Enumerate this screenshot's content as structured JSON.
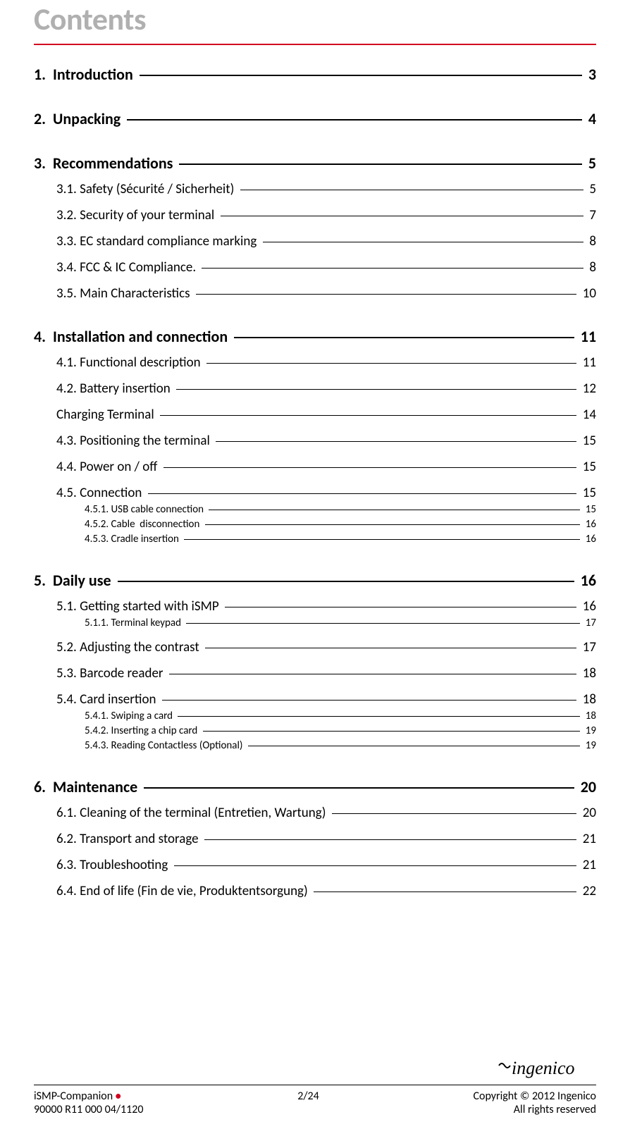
{
  "title": "Contents",
  "colors": {
    "title": "#b0b0b0",
    "rule": "#d00020",
    "text": "#000000",
    "bg": "#ffffff"
  },
  "toc": [
    {
      "level": 1,
      "num": "1.",
      "label": "Introduction",
      "page": "3",
      "first": true
    },
    {
      "level": 1,
      "num": "2.",
      "label": "Unpacking",
      "page": "4"
    },
    {
      "level": 1,
      "num": "3.",
      "label": "Recommendations",
      "page": "5"
    },
    {
      "level": 2,
      "num": "3.1.",
      "label": "Safety (Sécurité / Sicherheit)",
      "page": "5",
      "first": true
    },
    {
      "level": 2,
      "num": "3.2.",
      "label": "Security of your terminal",
      "page": "7"
    },
    {
      "level": 2,
      "num": "3.3.",
      "label": "EC standard compliance marking",
      "page": "8"
    },
    {
      "level": 2,
      "num": "3.4.",
      "label": "FCC & IC Compliance.",
      "page": "8"
    },
    {
      "level": 2,
      "num": "3.5.",
      "label": "Main Characteristics",
      "page": "10"
    },
    {
      "level": 1,
      "num": "4.",
      "label": "Installation and connection",
      "page": "11"
    },
    {
      "level": 2,
      "num": "4.1.",
      "label": "Functional description",
      "page": "11",
      "first": true
    },
    {
      "level": 2,
      "num": "4.2.",
      "label": "Battery insertion",
      "page": "12"
    },
    {
      "level": 2,
      "num": "",
      "label": "Charging Terminal",
      "page": "14"
    },
    {
      "level": 2,
      "num": "4.3.",
      "label": "Positioning the terminal",
      "page": "15"
    },
    {
      "level": 2,
      "num": "4.4.",
      "label": "Power on / off",
      "page": "15"
    },
    {
      "level": 2,
      "num": "4.5.",
      "label": "Connection",
      "page": "15"
    },
    {
      "level": 3,
      "num": "4.5.1.",
      "label": "USB cable connection",
      "page": "15"
    },
    {
      "level": 3,
      "num": "4.5.2.",
      "label": "Cable  disconnection",
      "page": "16"
    },
    {
      "level": 3,
      "num": "4.5.3.",
      "label": "Cradle insertion",
      "page": "16"
    },
    {
      "level": 1,
      "num": "5.",
      "label": "Daily use",
      "page": "16"
    },
    {
      "level": 2,
      "num": "5.1.",
      "label": "Getting started with iSMP",
      "page": "16",
      "first": true
    },
    {
      "level": 3,
      "num": "5.1.1.",
      "label": "Terminal keypad",
      "page": "17"
    },
    {
      "level": 2,
      "num": "5.2.",
      "label": "Adjusting the contrast",
      "page": "17"
    },
    {
      "level": 2,
      "num": "5.3.",
      "label": "Barcode reader",
      "page": "18"
    },
    {
      "level": 2,
      "num": "5.4.",
      "label": "Card insertion",
      "page": "18"
    },
    {
      "level": 3,
      "num": "5.4.1.",
      "label": "Swiping a card",
      "page": "18"
    },
    {
      "level": 3,
      "num": "5.4.2.",
      "label": "Inserting a chip card",
      "page": "19"
    },
    {
      "level": 3,
      "num": "5.4.3.",
      "label": "Reading Contactless (Optional)",
      "page": "19"
    },
    {
      "level": 1,
      "num": "6.",
      "label": "Maintenance",
      "page": "20"
    },
    {
      "level": 2,
      "num": "6.1.",
      "label": "Cleaning of the terminal (Entretien, Wartung)",
      "page": "20",
      "first": true
    },
    {
      "level": 2,
      "num": "6.2.",
      "label": "Transport and storage",
      "page": "21"
    },
    {
      "level": 2,
      "num": "6.3.",
      "label": "Troubleshooting",
      "page": "21"
    },
    {
      "level": 2,
      "num": "6.4.",
      "label": "End of life (Fin de vie, Produktentsorgung)",
      "page": "22"
    }
  ],
  "footer": {
    "left_line1": "iSMP-Companion",
    "left_line2": "90000 R11 000 04/1120",
    "center": "2/24",
    "right_line1": "Copyright © 2012 Ingenico",
    "right_line2": "All rights reserved",
    "logo_text": "ingenico"
  }
}
